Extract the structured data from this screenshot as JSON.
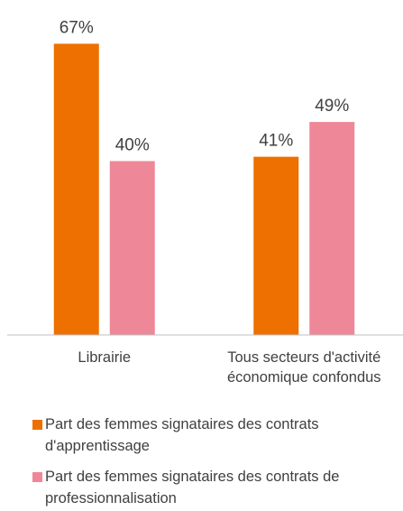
{
  "chart_data": {
    "type": "bar",
    "categories": [
      "Librairie",
      "Tous secteurs d'activité économique confondus"
    ],
    "series": [
      {
        "name": "Part des femmes signataires des contrats d'apprentissage",
        "color": "#ed7000",
        "values": [
          67,
          41
        ],
        "value_labels": [
          "67%",
          "41%"
        ]
      },
      {
        "name": "Part des femmes signataires des contrats de professionnalisation",
        "color": "#ee8898",
        "values": [
          40,
          49
        ],
        "value_labels": [
          "40%",
          "49%"
        ]
      }
    ],
    "ylim": [
      0,
      70
    ],
    "legend": "bottom"
  }
}
